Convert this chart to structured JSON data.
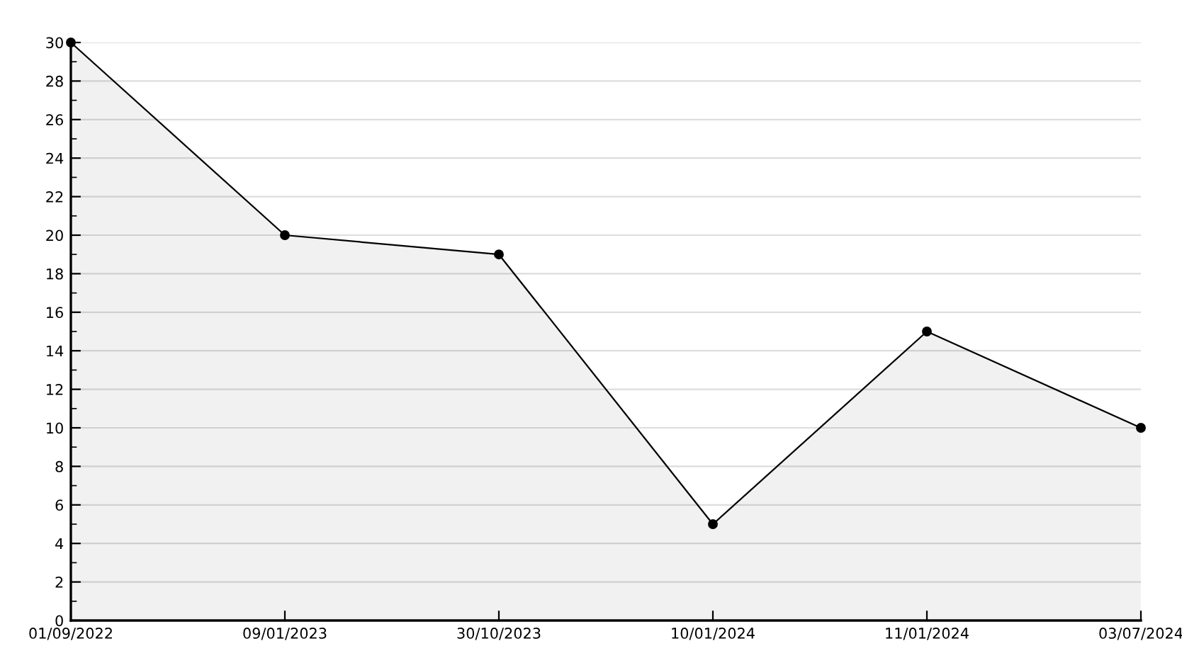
{
  "chart_data": {
    "type": "area",
    "categories": [
      "01/09/2022",
      "09/01/2023",
      "30/10/2023",
      "10/01/2024",
      "11/01/2024",
      "03/07/2024"
    ],
    "series": [
      {
        "color": "#000000",
        "values": [
          30,
          20,
          19,
          5,
          15,
          10
        ]
      }
    ],
    "ylim": [
      0,
      30
    ],
    "yticks": [
      0,
      2,
      4,
      6,
      8,
      10,
      12,
      14,
      16,
      18,
      20,
      22,
      24,
      26,
      28,
      30
    ],
    "grid": "y",
    "legend": false,
    "marker": "circle",
    "line_style": "solid"
  }
}
